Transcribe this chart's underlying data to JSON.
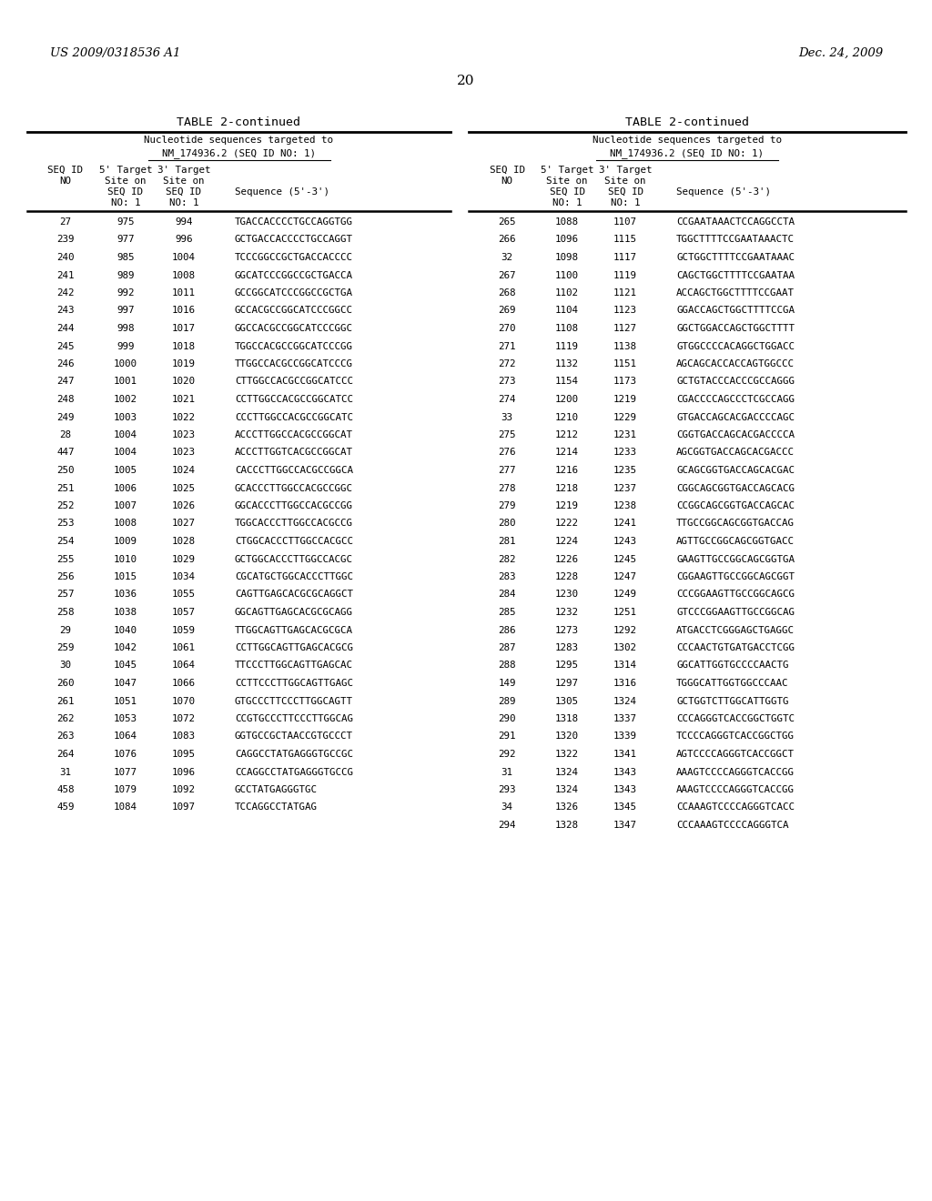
{
  "header_left": "US 2009/0318536 A1",
  "header_right": "Dec. 24, 2009",
  "page_number": "20",
  "table_title": "TABLE 2-continued",
  "left_table": [
    [
      "27",
      "975",
      "994",
      "TGACCACCCCTGCCAGGTGG"
    ],
    [
      "239",
      "977",
      "996",
      "GCTGACCACCCCTGCCAGGT"
    ],
    [
      "240",
      "985",
      "1004",
      "TCCCGGCCGCTGACCACCCC"
    ],
    [
      "241",
      "989",
      "1008",
      "GGCATCCCGGCCGCTGACCA"
    ],
    [
      "242",
      "992",
      "1011",
      "GCCGGCATCCCGGCCGCTGA"
    ],
    [
      "243",
      "997",
      "1016",
      "GCCACGCCGGCATCCCGGCC"
    ],
    [
      "244",
      "998",
      "1017",
      "GGCCACGCCGGCATCCCGGC"
    ],
    [
      "245",
      "999",
      "1018",
      "TGGCCACGCCGGCATCCCGG"
    ],
    [
      "246",
      "1000",
      "1019",
      "TTGGCCACGCCGGCATCCCG"
    ],
    [
      "247",
      "1001",
      "1020",
      "CTTGGCCACGCCGGCATCCC"
    ],
    [
      "248",
      "1002",
      "1021",
      "CCTTGGCCACGCCGGCATCC"
    ],
    [
      "249",
      "1003",
      "1022",
      "CCCTTGGCCACGCCGGCATC"
    ],
    [
      "28",
      "1004",
      "1023",
      "ACCCTTGGCCACGCCGGCAT"
    ],
    [
      "447",
      "1004",
      "1023",
      "ACCCTTGGTCACGCCGGCAT"
    ],
    [
      "250",
      "1005",
      "1024",
      "CACCCTTGGCCACGCCGGCA"
    ],
    [
      "251",
      "1006",
      "1025",
      "GCACCCTTGGCCACGCCGGC"
    ],
    [
      "252",
      "1007",
      "1026",
      "GGCACCCTTGGCCACGCCGG"
    ],
    [
      "253",
      "1008",
      "1027",
      "TGGCACCCTTGGCCACGCCG"
    ],
    [
      "254",
      "1009",
      "1028",
      "CTGGCACCCTTGGCCACGCC"
    ],
    [
      "255",
      "1010",
      "1029",
      "GCTGGCACCCTTGGCCACGC"
    ],
    [
      "256",
      "1015",
      "1034",
      "CGCATGCTGGCACCCTTGGC"
    ],
    [
      "257",
      "1036",
      "1055",
      "CAGTTGAGCACGCGCAGGCT"
    ],
    [
      "258",
      "1038",
      "1057",
      "GGCAGTTGAGCACGCGCAGG"
    ],
    [
      "29",
      "1040",
      "1059",
      "TTGGCAGTTGAGCACGCGCA"
    ],
    [
      "259",
      "1042",
      "1061",
      "CCTTGGCAGTTGAGCACGCG"
    ],
    [
      "30",
      "1045",
      "1064",
      "TTCCCTTGGCAGTTGAGCAC"
    ],
    [
      "260",
      "1047",
      "1066",
      "CCTTCCCTTGGCAGTTGAGC"
    ],
    [
      "261",
      "1051",
      "1070",
      "GTGCCCTTCCCTTGGCAGTT"
    ],
    [
      "262",
      "1053",
      "1072",
      "CCGTGCCCTTCCCTTGGCAG"
    ],
    [
      "263",
      "1064",
      "1083",
      "GGTGCCGCTAACCGTGCCCT"
    ],
    [
      "264",
      "1076",
      "1095",
      "CAGGCCTATGAGGGTGCCGC"
    ],
    [
      "31",
      "1077",
      "1096",
      "CCAGGCCTATGAGGGTGCCG"
    ],
    [
      "458",
      "1079",
      "1092",
      "GCCTATGAGGGTGC"
    ],
    [
      "459",
      "1084",
      "1097",
      "TCCAGGCCTATGAG"
    ]
  ],
  "right_table": [
    [
      "265",
      "1088",
      "1107",
      "CCGAATAAACTCCAGGCCTA"
    ],
    [
      "266",
      "1096",
      "1115",
      "TGGCTTTTCCGAATAAACTC"
    ],
    [
      "32",
      "1098",
      "1117",
      "GCTGGCTTTTCCGAATAAAC"
    ],
    [
      "267",
      "1100",
      "1119",
      "CAGCTGGCTTTTCCGAATAA"
    ],
    [
      "268",
      "1102",
      "1121",
      "ACCAGCTGGCTTTTCCGAAT"
    ],
    [
      "269",
      "1104",
      "1123",
      "GGACCAGCTGGCTTTTCCGA"
    ],
    [
      "270",
      "1108",
      "1127",
      "GGCTGGACCAGCTGGCTTTT"
    ],
    [
      "271",
      "1119",
      "1138",
      "GTGGCCCCACAGGCTGGACC"
    ],
    [
      "272",
      "1132",
      "1151",
      "AGCAGCACCACCAGTGGCCC"
    ],
    [
      "273",
      "1154",
      "1173",
      "GCTGTACCCACCCGCCAGGG"
    ],
    [
      "274",
      "1200",
      "1219",
      "CGACCCCAGCCCTCGCCAGG"
    ],
    [
      "33",
      "1210",
      "1229",
      "GTGACCAGCACGACCCCAGC"
    ],
    [
      "275",
      "1212",
      "1231",
      "CGGTGACCAGCACGACCCCA"
    ],
    [
      "276",
      "1214",
      "1233",
      "AGCGGTGACCAGCACGACCC"
    ],
    [
      "277",
      "1216",
      "1235",
      "GCAGCGGTGACCAGCACGAC"
    ],
    [
      "278",
      "1218",
      "1237",
      "CGGCAGCGGTGACCAGCACG"
    ],
    [
      "279",
      "1219",
      "1238",
      "CCGGCAGCGGTGACCAGCAC"
    ],
    [
      "280",
      "1222",
      "1241",
      "TTGCCGGCAGCGGTGACCAG"
    ],
    [
      "281",
      "1224",
      "1243",
      "AGTTGCCGGCAGCGGTGACC"
    ],
    [
      "282",
      "1226",
      "1245",
      "GAAGTTGCCGGCAGCGGTGA"
    ],
    [
      "283",
      "1228",
      "1247",
      "CGGAAGTTGCCGGCAGCGGT"
    ],
    [
      "284",
      "1230",
      "1249",
      "CCCGGAAGTTGCCGGCAGCG"
    ],
    [
      "285",
      "1232",
      "1251",
      "GTCCCGGAAGTTGCCGGCAG"
    ],
    [
      "286",
      "1273",
      "1292",
      "ATGACCTCGGGAGCTGAGGC"
    ],
    [
      "287",
      "1283",
      "1302",
      "CCCAACTGTGATGACCTCGG"
    ],
    [
      "288",
      "1295",
      "1314",
      "GGCATTGGTGCCCCAACTG"
    ],
    [
      "149",
      "1297",
      "1316",
      "TGGGCATTGGTGGCCCAAC"
    ],
    [
      "289",
      "1305",
      "1324",
      "GCTGGTCTTGGCATTGGTG"
    ],
    [
      "290",
      "1318",
      "1337",
      "CCCAGGGTCACCGGCTGGTC"
    ],
    [
      "291",
      "1320",
      "1339",
      "TCCCCAGGGTCACCGGCTGG"
    ],
    [
      "292",
      "1322",
      "1341",
      "AGTCCCCAGGGTCACCGGCT"
    ],
    [
      "31",
      "1324",
      "1343",
      "AAAGTCCCCAGGGTCACCGG"
    ],
    [
      "293",
      "1324",
      "1343",
      "AAAGTCCCCAGGGTCACCGG"
    ],
    [
      "34",
      "1326",
      "1345",
      "CCAAAGTCCCCAGGGTCACC"
    ],
    [
      "294",
      "1328",
      "1347",
      "CCCAAAGTCCCCAGGGTCA"
    ]
  ],
  "background_color": "#ffffff",
  "text_color": "#000000"
}
